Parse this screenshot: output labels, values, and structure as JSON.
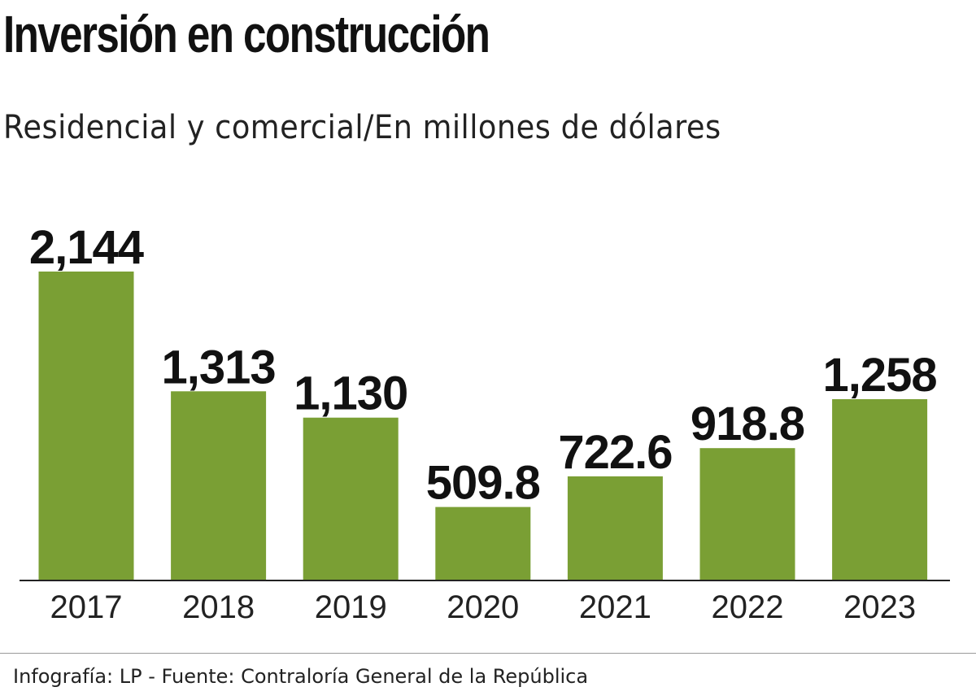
{
  "header": {
    "title": "Inversión en construcción",
    "subtitle": "Residencial y comercial/En millones de dólares"
  },
  "footer": {
    "credit": "Infografía: LP - Fuente: Contraloría General de la República"
  },
  "colors": {
    "bar": "#7a9f34",
    "axis": "#222222",
    "text": "#111111"
  },
  "chart_data": {
    "type": "bar",
    "title": "Inversión en construcción",
    "subtitle": "Residencial y comercial/En millones de dólares",
    "categories": [
      "2017",
      "2018",
      "2019",
      "2020",
      "2021",
      "2022",
      "2023"
    ],
    "values": [
      2144,
      1313,
      1130,
      509.8,
      722.6,
      918.8,
      1258
    ],
    "value_labels": [
      "2,144",
      "1,313",
      "1,130",
      "509.8",
      "722.6",
      "918.8",
      "1,258"
    ],
    "xlabel": "",
    "ylabel": "",
    "ylim": [
      0,
      2144
    ],
    "grid": false,
    "legend": "none"
  }
}
